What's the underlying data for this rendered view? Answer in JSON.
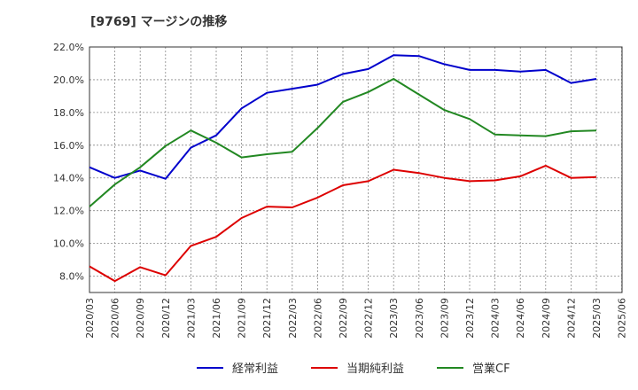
{
  "chart_data": {
    "type": "line",
    "title": "[9769]  マージンの推移",
    "xlabel": "",
    "ylabel": "",
    "x": [
      "2020/03",
      "2020/06",
      "2020/09",
      "2020/12",
      "2021/03",
      "2021/06",
      "2021/09",
      "2021/12",
      "2022/03",
      "2022/06",
      "2022/09",
      "2022/12",
      "2023/03",
      "2023/06",
      "2023/09",
      "2023/12",
      "2024/03",
      "2024/06",
      "2024/09",
      "2024/12",
      "2025/03",
      "2025/06"
    ],
    "yticks": [
      "8.0%",
      "10.0%",
      "12.0%",
      "14.0%",
      "16.0%",
      "18.0%",
      "20.0%",
      "22.0%"
    ],
    "ylim": [
      7.0,
      22.0
    ],
    "grid": true,
    "legend_position": "bottom",
    "series": [
      {
        "name": "経常利益",
        "color": "#0000cc",
        "values": [
          14.65,
          14.0,
          14.45,
          13.95,
          15.85,
          16.6,
          18.25,
          19.2,
          19.45,
          19.7,
          20.35,
          20.65,
          21.5,
          21.45,
          20.95,
          20.6,
          20.6,
          20.5,
          20.6,
          19.8,
          20.05,
          null
        ]
      },
      {
        "name": "当期純利益",
        "color": "#dd0000",
        "values": [
          8.6,
          7.7,
          8.55,
          8.05,
          9.85,
          10.4,
          11.55,
          12.25,
          12.2,
          12.8,
          13.55,
          13.8,
          14.5,
          14.3,
          14.0,
          13.8,
          13.85,
          14.1,
          14.75,
          14.0,
          14.05,
          null
        ]
      },
      {
        "name": "営業CF",
        "color": "#228822",
        "values": [
          12.25,
          13.6,
          14.65,
          15.95,
          16.9,
          16.15,
          15.25,
          15.45,
          15.6,
          17.05,
          18.65,
          19.25,
          20.05,
          19.1,
          18.15,
          17.6,
          16.65,
          16.6,
          16.55,
          16.85,
          16.9,
          null
        ]
      }
    ]
  }
}
